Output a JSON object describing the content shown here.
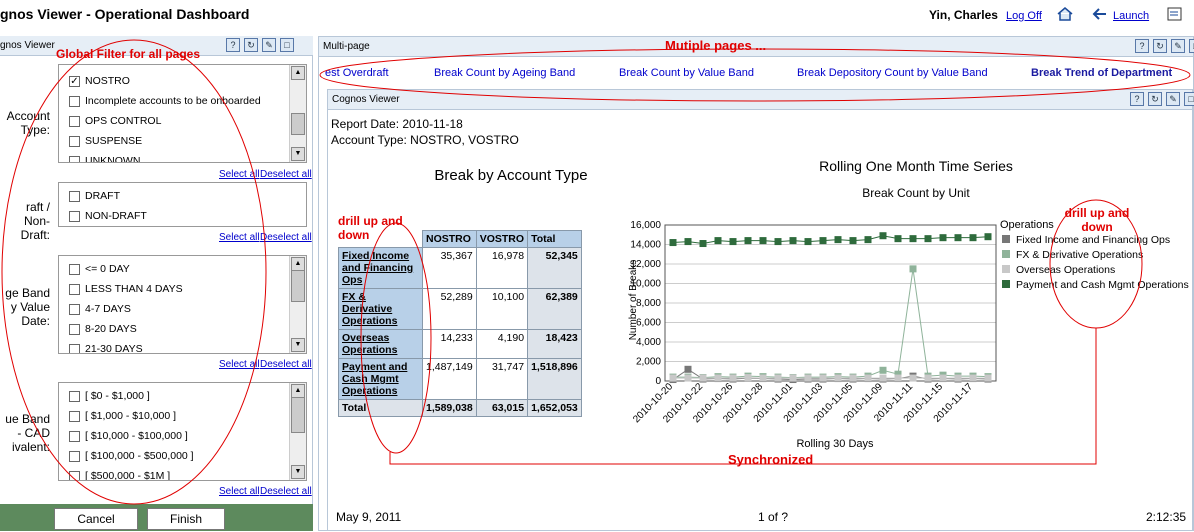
{
  "app": {
    "title": "gnos Viewer - Operational Dashboard",
    "user": "Yin, Charles",
    "logoff": "Log Off",
    "launch": "Launch"
  },
  "left": {
    "header": "gnos Viewer",
    "annotation": "Global Filter for all pages",
    "select_all": "Select all",
    "deselect_all": "Deselect all",
    "filters": [
      {
        "label": "Account\nType:",
        "options": [
          {
            "text": "NOSTRO",
            "checked": true
          },
          {
            "text": "Incomplete accounts to be onboarded",
            "checked": false
          },
          {
            "text": "OPS CONTROL",
            "checked": false
          },
          {
            "text": "SUSPENSE",
            "checked": false
          },
          {
            "text": "UNKNOWN",
            "checked": false
          }
        ]
      },
      {
        "label": "raft / Non-\nDraft:",
        "options": [
          {
            "text": "DRAFT",
            "checked": false
          },
          {
            "text": "NON-DRAFT",
            "checked": false
          }
        ]
      },
      {
        "label": "ge Band\ny Value\nDate:",
        "options": [
          {
            "text": "<= 0 DAY",
            "checked": false
          },
          {
            "text": "LESS THAN 4 DAYS",
            "checked": false
          },
          {
            "text": "4-7 DAYS",
            "checked": false
          },
          {
            "text": "8-20 DAYS",
            "checked": false
          },
          {
            "text": "21-30 DAYS",
            "checked": false
          }
        ]
      },
      {
        "label": "ue Band\n- CAD\nivalent:",
        "options": [
          {
            "text": "[ $0 - $1,000 ]",
            "checked": false
          },
          {
            "text": "[ $1,000 - $10,000 ]",
            "checked": false
          },
          {
            "text": "[ $10,000 - $100,000 ]",
            "checked": false
          },
          {
            "text": "[ $100,000 - $500,000 ]",
            "checked": false
          },
          {
            "text": "[ $500,000 - $1M ]",
            "checked": false
          }
        ]
      }
    ],
    "cancel": "Cancel",
    "finish": "Finish"
  },
  "multi": {
    "header": "Multi-page",
    "annotation": "Mutiple pages ...",
    "tabs": [
      "est Overdraft",
      "Break Count by Ageing Band",
      "Break Count by Value Band",
      "Break Depository Count by Value Band",
      "Break Trend of Department"
    ],
    "active_tab": 4
  },
  "report": {
    "header": "Cognos Viewer",
    "date_line": "Report Date: 2010-11-18",
    "account_line": "Account Type: NOSTRO, VOSTRO",
    "crosstab_title": "Break by Account Type",
    "drill_left": "drill up and down",
    "drill_right": "drill up and down",
    "synchronized": "Synchronized",
    "footer_date": "May 9, 2011",
    "footer_page": "1 of ?",
    "footer_time": "2:12:35",
    "crosstab": {
      "columns": [
        "NOSTRO",
        "VOSTRO",
        "Total"
      ],
      "rows": [
        {
          "label": "Fixed Income and Financing Ops",
          "values": [
            "35,367",
            "16,978",
            "52,345"
          ]
        },
        {
          "label": "FX & Derivative Operations",
          "values": [
            "52,289",
            "10,100",
            "62,389"
          ]
        },
        {
          "label": "Overseas Operations",
          "values": [
            "14,233",
            "4,190",
            "18,423"
          ]
        },
        {
          "label": "Payment and Cash Mgmt Operations",
          "values": [
            "1,487,149",
            "31,747",
            "1,518,896"
          ]
        }
      ],
      "total": {
        "label": "Total",
        "values": [
          "1,589,038",
          "63,015",
          "1,652,053"
        ]
      }
    }
  },
  "chart_data": {
    "type": "line",
    "title": "Rolling One Month Time Series",
    "subtitle": "Break Count by Unit",
    "xlabel": "Rolling 30 Days",
    "ylabel": "Number of Breaks",
    "ylim": [
      0,
      16000
    ],
    "yticks": [
      "0",
      "2,000",
      "4,000",
      "6,000",
      "8,000",
      "10,000",
      "12,000",
      "14,000",
      "16,000"
    ],
    "legend_title": "Operations",
    "x": [
      "2010-10-20",
      "2010-10-21",
      "2010-10-22",
      "2010-10-25",
      "2010-10-26",
      "2010-10-27",
      "2010-10-28",
      "2010-10-29",
      "2010-11-01",
      "2010-11-02",
      "2010-11-03",
      "2010-11-04",
      "2010-11-05",
      "2010-11-08",
      "2010-11-09",
      "2010-11-10",
      "2010-11-11",
      "2010-11-12",
      "2010-11-15",
      "2010-11-16",
      "2010-11-17",
      "2010-11-18"
    ],
    "xtick_labels": [
      "2010-10-20",
      "2010-10-22",
      "2010-10-26",
      "2010-10-28",
      "2010-11-01",
      "2010-11-03",
      "2010-11-05",
      "2010-11-09",
      "2010-11-11",
      "2010-11-15",
      "2010-11-17"
    ],
    "series": [
      {
        "name": "Fixed Income and Financing Ops",
        "color": "#777777",
        "values": [
          150,
          1200,
          200,
          250,
          200,
          300,
          250,
          200,
          150,
          200,
          200,
          250,
          200,
          250,
          200,
          250,
          500,
          200,
          250,
          200,
          250,
          200
        ]
      },
      {
        "name": "FX & Derivative Operations",
        "color": "#8fb39a",
        "values": [
          400,
          400,
          350,
          450,
          400,
          500,
          450,
          400,
          350,
          400,
          400,
          450,
          400,
          500,
          1100,
          700,
          11500,
          500,
          600,
          500,
          500,
          450
        ]
      },
      {
        "name": "Overseas Operations",
        "color": "#c8c8c8",
        "values": [
          300,
          300,
          300,
          300,
          300,
          350,
          300,
          300,
          300,
          300,
          300,
          300,
          300,
          300,
          300,
          300,
          300,
          300,
          300,
          300,
          300,
          300
        ]
      },
      {
        "name": "Payment and Cash Mgmt Operations",
        "color": "#2e6b3c",
        "values": [
          14200,
          14300,
          14100,
          14400,
          14300,
          14400,
          14400,
          14300,
          14400,
          14300,
          14400,
          14500,
          14400,
          14500,
          14900,
          14600,
          14600,
          14600,
          14700,
          14700,
          14700,
          14800
        ]
      }
    ]
  }
}
